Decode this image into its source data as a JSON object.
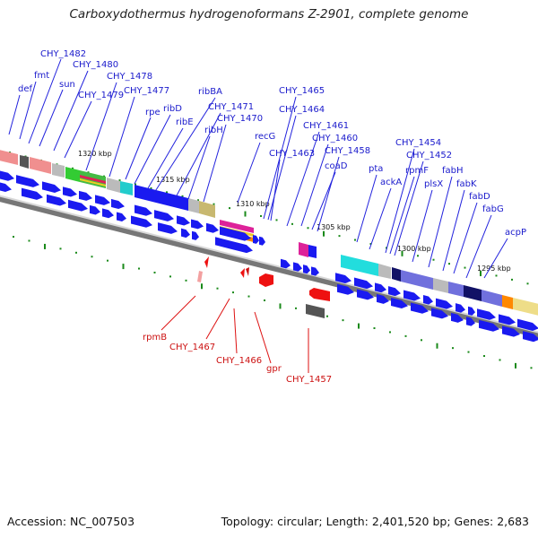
{
  "title": "Carboxydothermus hydrogenoformans Z-2901, complete genome",
  "footer": {
    "accession": "Accession: NC_007503",
    "summary": "Topology: circular; Length: 2,401,520 bp; Genes: 2,683"
  },
  "colors": {
    "forward_gene": "#1a1af0",
    "reverse_gene": "#ee1111",
    "tick": "#1a8a1a",
    "backbone": "#888888"
  },
  "kbp_labels": [
    "1320 kbp",
    "1315 kbp",
    "1310 kbp",
    "1305 kbp",
    "1300 kbp",
    "1295 kbp"
  ],
  "forward_gene_labels": [
    "def",
    "fmt",
    "CHY_1482",
    "sun",
    "CHY_1480",
    "CHY_1479",
    "CHY_1478",
    "CHY_1477",
    "rpe",
    "ribD",
    "ribE",
    "ribBA",
    "CHY_1471",
    "ribH",
    "CHY_1470",
    "recG",
    "CHY_1465",
    "CHY_1464",
    "CHY_1463",
    "CHY_1461",
    "CHY_1460",
    "coaD",
    "CHY_1458",
    "pta",
    "ackA",
    "CHY_1454",
    "rpmF",
    "CHY_1452",
    "plsX",
    "fabH",
    "fabK",
    "fabD",
    "fabG",
    "acpP"
  ],
  "reverse_gene_labels": [
    "rpmB",
    "CHY_1467",
    "CHY_1466",
    "gpr",
    "CHY_1457"
  ]
}
